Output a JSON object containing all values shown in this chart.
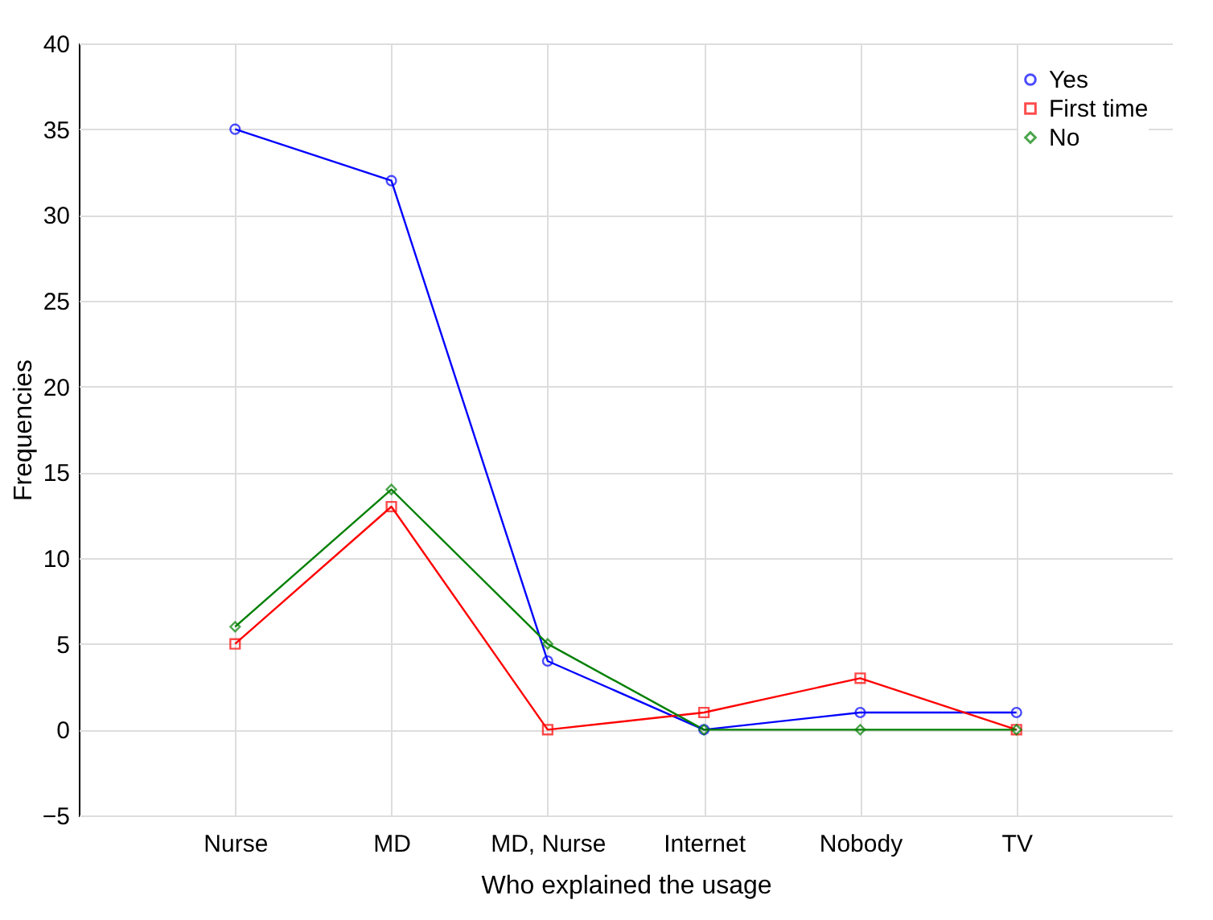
{
  "chart_data": {
    "type": "line",
    "xlabel": "Who explained the usage",
    "ylabel": "Frequencies",
    "categories": [
      "Nurse",
      "MD",
      "MD, Nurse",
      "Internet",
      "Nobody",
      "TV"
    ],
    "series": [
      {
        "name": "Yes",
        "color": "#0000ff",
        "marker": "circle",
        "values": [
          35,
          32,
          4,
          0,
          1,
          1
        ]
      },
      {
        "name": "First time",
        "color": "#ff0000",
        "marker": "square",
        "values": [
          5,
          13,
          0,
          1,
          3,
          0
        ]
      },
      {
        "name": "No",
        "color": "#008000",
        "marker": "diamond",
        "values": [
          6,
          14,
          5,
          0,
          0,
          0
        ]
      }
    ],
    "ylim": [
      -5,
      40
    ],
    "yticks": [
      -5,
      0,
      5,
      10,
      15,
      20,
      25,
      30,
      35,
      40
    ],
    "grid": true,
    "legend": "top right",
    "line_style": "solid"
  }
}
